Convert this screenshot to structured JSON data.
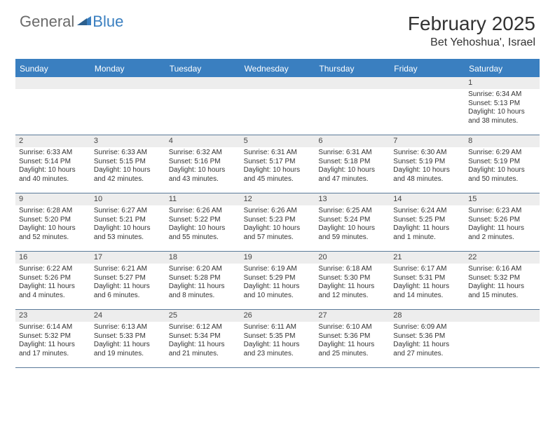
{
  "header": {
    "logo_general": "General",
    "logo_blue": "Blue",
    "month_title": "February 2025",
    "location": "Bet Yehoshua', Israel"
  },
  "colors": {
    "accent": "#3a7fc0",
    "header_text": "#ffffff",
    "daynum_bg": "#ededed",
    "body_text": "#333333",
    "rule": "#5a7a99"
  },
  "calendar": {
    "weekdays": [
      "Sunday",
      "Monday",
      "Tuesday",
      "Wednesday",
      "Thursday",
      "Friday",
      "Saturday"
    ],
    "weeks": [
      [
        {
          "blank": true
        },
        {
          "blank": true
        },
        {
          "blank": true
        },
        {
          "blank": true
        },
        {
          "blank": true
        },
        {
          "blank": true
        },
        {
          "num": "1",
          "sunrise": "Sunrise: 6:34 AM",
          "sunset": "Sunset: 5:13 PM",
          "daylight": "Daylight: 10 hours and 38 minutes."
        }
      ],
      [
        {
          "num": "2",
          "sunrise": "Sunrise: 6:33 AM",
          "sunset": "Sunset: 5:14 PM",
          "daylight": "Daylight: 10 hours and 40 minutes."
        },
        {
          "num": "3",
          "sunrise": "Sunrise: 6:33 AM",
          "sunset": "Sunset: 5:15 PM",
          "daylight": "Daylight: 10 hours and 42 minutes."
        },
        {
          "num": "4",
          "sunrise": "Sunrise: 6:32 AM",
          "sunset": "Sunset: 5:16 PM",
          "daylight": "Daylight: 10 hours and 43 minutes."
        },
        {
          "num": "5",
          "sunrise": "Sunrise: 6:31 AM",
          "sunset": "Sunset: 5:17 PM",
          "daylight": "Daylight: 10 hours and 45 minutes."
        },
        {
          "num": "6",
          "sunrise": "Sunrise: 6:31 AM",
          "sunset": "Sunset: 5:18 PM",
          "daylight": "Daylight: 10 hours and 47 minutes."
        },
        {
          "num": "7",
          "sunrise": "Sunrise: 6:30 AM",
          "sunset": "Sunset: 5:19 PM",
          "daylight": "Daylight: 10 hours and 48 minutes."
        },
        {
          "num": "8",
          "sunrise": "Sunrise: 6:29 AM",
          "sunset": "Sunset: 5:19 PM",
          "daylight": "Daylight: 10 hours and 50 minutes."
        }
      ],
      [
        {
          "num": "9",
          "sunrise": "Sunrise: 6:28 AM",
          "sunset": "Sunset: 5:20 PM",
          "daylight": "Daylight: 10 hours and 52 minutes."
        },
        {
          "num": "10",
          "sunrise": "Sunrise: 6:27 AM",
          "sunset": "Sunset: 5:21 PM",
          "daylight": "Daylight: 10 hours and 53 minutes."
        },
        {
          "num": "11",
          "sunrise": "Sunrise: 6:26 AM",
          "sunset": "Sunset: 5:22 PM",
          "daylight": "Daylight: 10 hours and 55 minutes."
        },
        {
          "num": "12",
          "sunrise": "Sunrise: 6:26 AM",
          "sunset": "Sunset: 5:23 PM",
          "daylight": "Daylight: 10 hours and 57 minutes."
        },
        {
          "num": "13",
          "sunrise": "Sunrise: 6:25 AM",
          "sunset": "Sunset: 5:24 PM",
          "daylight": "Daylight: 10 hours and 59 minutes."
        },
        {
          "num": "14",
          "sunrise": "Sunrise: 6:24 AM",
          "sunset": "Sunset: 5:25 PM",
          "daylight": "Daylight: 11 hours and 1 minute."
        },
        {
          "num": "15",
          "sunrise": "Sunrise: 6:23 AM",
          "sunset": "Sunset: 5:26 PM",
          "daylight": "Daylight: 11 hours and 2 minutes."
        }
      ],
      [
        {
          "num": "16",
          "sunrise": "Sunrise: 6:22 AM",
          "sunset": "Sunset: 5:26 PM",
          "daylight": "Daylight: 11 hours and 4 minutes."
        },
        {
          "num": "17",
          "sunrise": "Sunrise: 6:21 AM",
          "sunset": "Sunset: 5:27 PM",
          "daylight": "Daylight: 11 hours and 6 minutes."
        },
        {
          "num": "18",
          "sunrise": "Sunrise: 6:20 AM",
          "sunset": "Sunset: 5:28 PM",
          "daylight": "Daylight: 11 hours and 8 minutes."
        },
        {
          "num": "19",
          "sunrise": "Sunrise: 6:19 AM",
          "sunset": "Sunset: 5:29 PM",
          "daylight": "Daylight: 11 hours and 10 minutes."
        },
        {
          "num": "20",
          "sunrise": "Sunrise: 6:18 AM",
          "sunset": "Sunset: 5:30 PM",
          "daylight": "Daylight: 11 hours and 12 minutes."
        },
        {
          "num": "21",
          "sunrise": "Sunrise: 6:17 AM",
          "sunset": "Sunset: 5:31 PM",
          "daylight": "Daylight: 11 hours and 14 minutes."
        },
        {
          "num": "22",
          "sunrise": "Sunrise: 6:16 AM",
          "sunset": "Sunset: 5:32 PM",
          "daylight": "Daylight: 11 hours and 15 minutes."
        }
      ],
      [
        {
          "num": "23",
          "sunrise": "Sunrise: 6:14 AM",
          "sunset": "Sunset: 5:32 PM",
          "daylight": "Daylight: 11 hours and 17 minutes."
        },
        {
          "num": "24",
          "sunrise": "Sunrise: 6:13 AM",
          "sunset": "Sunset: 5:33 PM",
          "daylight": "Daylight: 11 hours and 19 minutes."
        },
        {
          "num": "25",
          "sunrise": "Sunrise: 6:12 AM",
          "sunset": "Sunset: 5:34 PM",
          "daylight": "Daylight: 11 hours and 21 minutes."
        },
        {
          "num": "26",
          "sunrise": "Sunrise: 6:11 AM",
          "sunset": "Sunset: 5:35 PM",
          "daylight": "Daylight: 11 hours and 23 minutes."
        },
        {
          "num": "27",
          "sunrise": "Sunrise: 6:10 AM",
          "sunset": "Sunset: 5:36 PM",
          "daylight": "Daylight: 11 hours and 25 minutes."
        },
        {
          "num": "28",
          "sunrise": "Sunrise: 6:09 AM",
          "sunset": "Sunset: 5:36 PM",
          "daylight": "Daylight: 11 hours and 27 minutes."
        },
        {
          "blank": true
        }
      ]
    ]
  }
}
